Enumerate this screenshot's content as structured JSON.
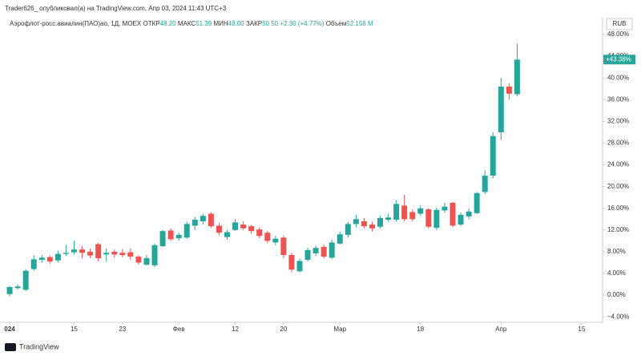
{
  "header": {
    "credit": "Trader626_ опубликовал(а) на TradingView.com, Апр 03, 2024 11:43 UTC+3",
    "brand": "TradingView"
  },
  "legend": {
    "symbol": "Аэрофлот-росс.авиалин(ПАО)ао, 1Д, MOEX",
    "open_label": "ОТКР",
    "open": "48.20",
    "high_label": "МАКС",
    "high": "51.39",
    "low_label": "МИН",
    "low": "48.00",
    "close_label": "ЗАКР",
    "close": "50.50",
    "change": "+2.30 (+4.77%)",
    "volume_label": "Объем",
    "volume": "52.156 M"
  },
  "chart_data": {
    "type": "candlestick",
    "currency": "RUB",
    "up_color": "#26a69a",
    "down_color": "#ef5350",
    "open": [
      0.2,
      1.3,
      1.0,
      4.8,
      6.5,
      7.0,
      6.4,
      7.6,
      7.9,
      8.4,
      8.0,
      9.4,
      7.5,
      8.0,
      7.8,
      7.9,
      7.1,
      5.6,
      5.5,
      9.0,
      11.9,
      10.5,
      10.6,
      12.8,
      13.6,
      15.0,
      12.8,
      10.7,
      12.0,
      13.0,
      12.7,
      12.1,
      11.5,
      9.7,
      10.6,
      7.4,
      4.4,
      6.5,
      7.7,
      8.9,
      6.9,
      9.5,
      11.1,
      13.1,
      13.6,
      13.0,
      12.6,
      13.9,
      13.9,
      16.5,
      15.3,
      15.0,
      15.8,
      12.4,
      15.6,
      17.0,
      13.0,
      14.5,
      15.1,
      19.0,
      22.0,
      30.0,
      38.4,
      37.0
    ],
    "high": [
      1.7,
      2.0,
      4.8,
      7.3,
      7.4,
      7.3,
      8.2,
      9.2,
      10.0,
      9.0,
      8.6,
      9.6,
      8.6,
      8.4,
      8.5,
      8.6,
      7.3,
      7.4,
      9.5,
      12.0,
      12.3,
      11.5,
      13.5,
      14.4,
      15.0,
      15.3,
      13.3,
      12.0,
      14.0,
      13.6,
      13.0,
      12.5,
      11.8,
      11.0,
      11.0,
      7.8,
      6.7,
      8.7,
      9.1,
      9.3,
      10.2,
      11.7,
      13.5,
      14.8,
      14.2,
      13.5,
      14.6,
      15.0,
      17.5,
      18.5,
      15.8,
      16.6,
      16.0,
      16.1,
      17.0,
      17.2,
      15.2,
      16.0,
      19.0,
      23.0,
      30.0,
      40.0,
      39.0,
      46.3
    ],
    "low": [
      -0.2,
      1.0,
      0.8,
      4.5,
      6.0,
      5.8,
      6.0,
      7.2,
      7.5,
      6.8,
      6.8,
      6.2,
      6.2,
      6.9,
      7.0,
      6.5,
      5.6,
      5.5,
      5.2,
      8.9,
      10.0,
      10.0,
      10.4,
      12.0,
      13.0,
      12.4,
      11.0,
      10.2,
      11.8,
      12.0,
      11.3,
      10.5,
      9.6,
      9.2,
      6.8,
      4.2,
      4.2,
      6.2,
      7.2,
      6.8,
      6.7,
      9.3,
      10.6,
      12.5,
      12.3,
      11.7,
      12.3,
      13.5,
      13.5,
      13.6,
      13.6,
      14.6,
      12.2,
      12.0,
      15.2,
      12.5,
      12.7,
      14.0,
      14.9,
      18.6,
      21.5,
      28.6,
      36.0,
      36.6
    ],
    "close": [
      1.5,
      1.6,
      4.5,
      6.6,
      6.9,
      6.2,
      7.6,
      7.8,
      8.4,
      7.8,
      7.3,
      6.8,
      7.8,
      7.5,
      7.4,
      7.1,
      6.0,
      6.8,
      9.2,
      11.8,
      10.3,
      11.1,
      13.1,
      13.9,
      14.6,
      12.7,
      11.5,
      11.6,
      13.4,
      12.3,
      11.8,
      10.9,
      10.0,
      10.4,
      7.4,
      4.7,
      6.3,
      8.3,
      8.7,
      7.1,
      9.7,
      11.2,
      13.1,
      14.0,
      12.7,
      12.3,
      14.2,
      14.3,
      16.8,
      14.0,
      14.0,
      16.0,
      12.6,
      15.7,
      16.3,
      12.8,
      14.8,
      15.4,
      18.8,
      22.0,
      29.3,
      38.4,
      37.1,
      43.38
    ],
    "last_label": "+43.38%",
    "xlim": [
      -1.2,
      73.6
    ],
    "xticks": [
      {
        "value": 0,
        "label": "024"
      },
      {
        "value": 8,
        "label": "15"
      },
      {
        "value": 14,
        "label": "23"
      },
      {
        "value": 21,
        "label": "Фев"
      },
      {
        "value": 28,
        "label": "12"
      },
      {
        "value": 34,
        "label": "20"
      },
      {
        "value": 41,
        "label": "Мар"
      },
      {
        "value": 51,
        "label": "18"
      },
      {
        "value": 61,
        "label": "Апр"
      },
      {
        "value": 71,
        "label": "15"
      }
    ],
    "ylim": [
      -5.0,
      51.1
    ],
    "yticks": [
      {
        "value": -4,
        "label": "−4.00%"
      },
      {
        "value": 0,
        "label": "0.00%"
      },
      {
        "value": 4,
        "label": "4.00%"
      },
      {
        "value": 8,
        "label": "8.00%"
      },
      {
        "value": 12,
        "label": "12.00%"
      },
      {
        "value": 16,
        "label": "16.00%"
      },
      {
        "value": 20,
        "label": "20.00%"
      },
      {
        "value": 24,
        "label": "24.00%"
      },
      {
        "value": 28,
        "label": "28.00%"
      },
      {
        "value": 32,
        "label": "32.00%"
      },
      {
        "value": 36,
        "label": "36.00%"
      },
      {
        "value": 40,
        "label": "40.00%"
      },
      {
        "value": 44,
        "label": "44.00%"
      },
      {
        "value": 48,
        "label": "48.00%"
      }
    ],
    "grid": false
  }
}
